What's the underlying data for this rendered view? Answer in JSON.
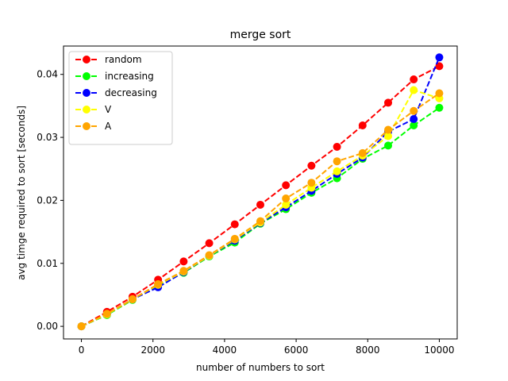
{
  "chart_data": {
    "type": "line",
    "title": "merge sort",
    "xlabel": "number of numbers to sort",
    "ylabel": "avg timge required to sort  [seconds]",
    "xlim": [
      -500,
      10500
    ],
    "ylim": [
      -0.002,
      0.0445
    ],
    "xticks": [
      0,
      2000,
      4000,
      6000,
      8000,
      10000
    ],
    "xtick_labels": [
      "0",
      "2000",
      "4000",
      "6000",
      "8000",
      "10000"
    ],
    "yticks": [
      0.0,
      0.01,
      0.02,
      0.03,
      0.04
    ],
    "ytick_labels": [
      "0.00",
      "0.01",
      "0.02",
      "0.03",
      "0.04"
    ],
    "grid": false,
    "legend": "top-left",
    "x": [
      0,
      714,
      1428,
      2142,
      2857,
      3571,
      4285,
      5000,
      5714,
      6428,
      7142,
      7857,
      8571,
      9285,
      10000
    ],
    "series": [
      {
        "name": "random",
        "color": "#ff0000",
        "values": [
          0.0,
          0.0023,
          0.0047,
          0.0074,
          0.0103,
          0.0132,
          0.0162,
          0.0193,
          0.0224,
          0.0255,
          0.0285,
          0.0319,
          0.0355,
          0.0392,
          0.0413
        ]
      },
      {
        "name": "increasing",
        "color": "#00ff00",
        "values": [
          0.0,
          0.0018,
          0.0042,
          0.0065,
          0.0085,
          0.0111,
          0.0133,
          0.0163,
          0.0186,
          0.0212,
          0.0235,
          0.0266,
          0.0287,
          0.0319,
          0.0347
        ]
      },
      {
        "name": "decreasing",
        "color": "#0000ff",
        "values": [
          0.0,
          0.0019,
          0.0043,
          0.0062,
          0.0086,
          0.0112,
          0.0136,
          0.0164,
          0.0189,
          0.0215,
          0.0242,
          0.0268,
          0.0309,
          0.0329,
          0.0427
        ]
      },
      {
        "name": "V",
        "color": "#ffff00",
        "values": [
          0.0,
          0.0019,
          0.0043,
          0.0066,
          0.0087,
          0.0112,
          0.0138,
          0.0165,
          0.0193,
          0.022,
          0.0246,
          0.0271,
          0.0302,
          0.0375,
          0.0362
        ]
      },
      {
        "name": "A",
        "color": "#ffa500",
        "values": [
          0.0,
          0.002,
          0.0043,
          0.0067,
          0.0088,
          0.0113,
          0.0139,
          0.0167,
          0.0203,
          0.0228,
          0.0262,
          0.0275,
          0.0312,
          0.0342,
          0.037
        ]
      }
    ]
  }
}
